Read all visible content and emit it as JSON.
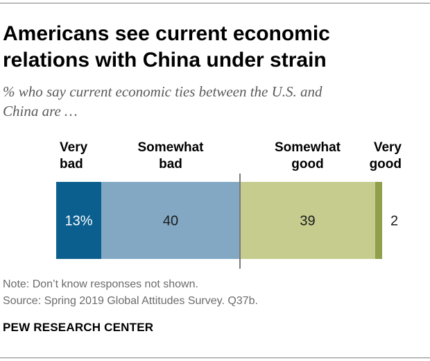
{
  "header": {
    "title_lines": [
      "Americans see current economic",
      "relations with China under strain"
    ],
    "subtitle_lines": [
      "% who say current economic ties between the U.S. and",
      "China are …"
    ]
  },
  "footer": {
    "note": "Note: Don’t know responses not shown.",
    "source": "Source: Spring 2019 Global Attitudes Survey. Q37b.",
    "brand": "PEW RESEARCH CENTER"
  },
  "chart_data": {
    "type": "bar",
    "orientation": "horizontal-stacked",
    "title": "Americans see current economic relations with China under strain",
    "subtitle": "% who say current economic ties between the U.S. and China are …",
    "xlim": [
      0,
      100
    ],
    "categories": [
      "Very bad",
      "Somewhat bad",
      "Somewhat good",
      "Very good"
    ],
    "category_label_lines": [
      [
        "Very",
        "bad"
      ],
      [
        "Somewhat",
        "bad"
      ],
      [
        "Somewhat",
        "good"
      ],
      [
        "Very",
        "good"
      ]
    ],
    "values": [
      13,
      40,
      39,
      2
    ],
    "data_labels": [
      "13%",
      "40",
      "39",
      "2"
    ],
    "colors": [
      "#0b5f8f",
      "#82a8c4",
      "#c5cc8d",
      "#8f9f4a"
    ],
    "label_colors": [
      "#ffffff",
      "#1a1a1a",
      "#1a1a1a",
      "#1a1a1a"
    ],
    "divider_after_index": 1
  }
}
